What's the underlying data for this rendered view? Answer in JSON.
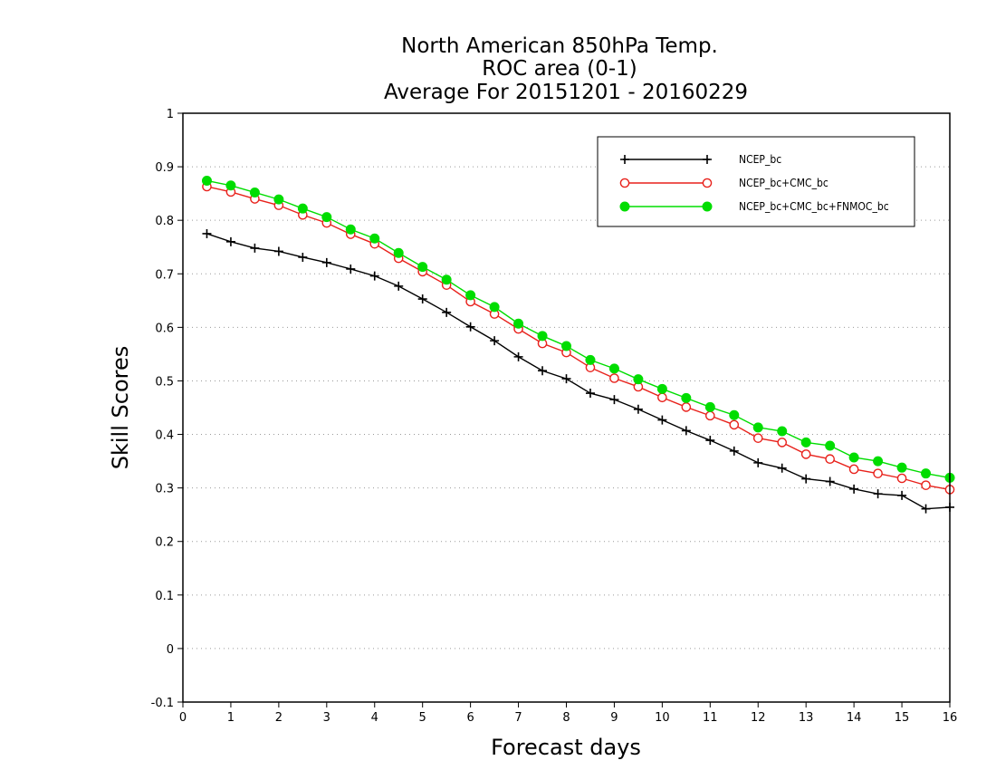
{
  "chart_data": {
    "type": "line",
    "title": [
      "North American 850hPa Temp.",
      "ROC area (0-1)",
      "Average For 20151201 - 20160229"
    ],
    "xlabel": "Forecast days",
    "ylabel": "Skill Scores",
    "xlim": [
      0,
      16
    ],
    "ylim": [
      -0.1,
      1
    ],
    "xticks": [
      "0",
      "1",
      "2",
      "3",
      "4",
      "5",
      "6",
      "7",
      "8",
      "9",
      "10",
      "11",
      "12",
      "13",
      "14",
      "15",
      "16"
    ],
    "yticks": [
      "-0.1",
      "0",
      "0.1",
      "0.2",
      "0.3",
      "0.4",
      "0.5",
      "0.6",
      "0.7",
      "0.8",
      "0.9",
      "1"
    ],
    "grid": "horizontal dotted",
    "legend_position": "top-right",
    "x": [
      0.5,
      1,
      1.5,
      2,
      2.5,
      3,
      3.5,
      4,
      4.5,
      5,
      5.5,
      6,
      6.5,
      7,
      7.5,
      8,
      8.5,
      9,
      9.5,
      10,
      10.5,
      11,
      11.5,
      12,
      12.5,
      13,
      13.5,
      14,
      14.5,
      15,
      15.5,
      16
    ],
    "series": [
      {
        "name": "NCEP_bc",
        "color": "#000000",
        "marker": "plus",
        "values": [
          0.775,
          0.76,
          0.748,
          0.742,
          0.731,
          0.721,
          0.709,
          0.696,
          0.677,
          0.653,
          0.628,
          0.601,
          0.575,
          0.545,
          0.519,
          0.504,
          0.477,
          0.465,
          0.447,
          0.427,
          0.407,
          0.389,
          0.369,
          0.347,
          0.337,
          0.317,
          0.312,
          0.298,
          0.289,
          0.286,
          0.261,
          0.264
        ]
      },
      {
        "name": "NCEP_bc+CMC_bc",
        "color": "#e8211b",
        "marker": "open-circle",
        "values": [
          0.863,
          0.853,
          0.84,
          0.828,
          0.81,
          0.795,
          0.774,
          0.756,
          0.729,
          0.704,
          0.679,
          0.648,
          0.625,
          0.597,
          0.57,
          0.553,
          0.525,
          0.505,
          0.489,
          0.469,
          0.451,
          0.435,
          0.418,
          0.393,
          0.385,
          0.363,
          0.354,
          0.335,
          0.327,
          0.318,
          0.305,
          0.297
        ]
      },
      {
        "name": "NCEP_bc+CMC_bc+FNMOC_bc",
        "color": "#00dd00",
        "marker": "filled-circle",
        "values": [
          0.874,
          0.865,
          0.852,
          0.839,
          0.822,
          0.806,
          0.783,
          0.766,
          0.739,
          0.713,
          0.689,
          0.66,
          0.638,
          0.607,
          0.584,
          0.565,
          0.539,
          0.523,
          0.503,
          0.485,
          0.468,
          0.451,
          0.436,
          0.413,
          0.406,
          0.385,
          0.379,
          0.357,
          0.35,
          0.338,
          0.327,
          0.319
        ]
      }
    ]
  }
}
